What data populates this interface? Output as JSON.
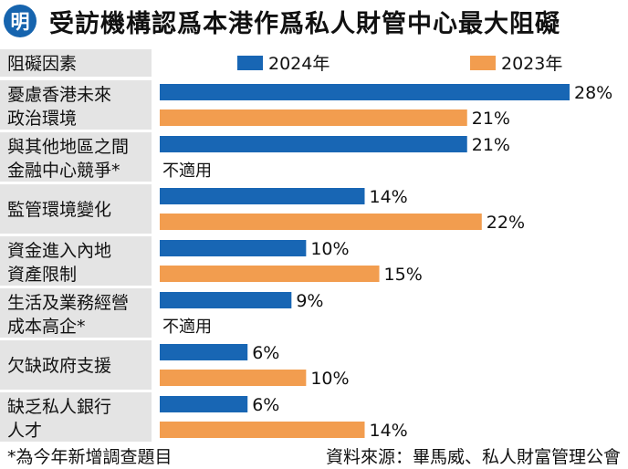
{
  "header": {
    "logo_text": "明",
    "title": "受訪機構認爲本港作爲私人財管中心最大阻礙"
  },
  "colors": {
    "series_2024": "#1866b4",
    "series_2023": "#f29d4f",
    "label_bg": "#e4e4e4",
    "header_bg": "#e4e4e4"
  },
  "chart_data": {
    "type": "bar",
    "orientation": "horizontal",
    "column_header": "阻礙因素",
    "categories": [
      [
        "憂慮香港未來",
        "政治環境"
      ],
      [
        "與其他地區之間",
        "金融中心競爭*"
      ],
      [
        "監管環境變化"
      ],
      [
        "資金進入內地",
        "資產限制"
      ],
      [
        "生活及業務經營",
        "成本高企*"
      ],
      [
        "欠缺政府支援"
      ],
      [
        "缺乏私人銀行",
        "人才"
      ]
    ],
    "series": [
      {
        "name": "2024年",
        "values": [
          28,
          21,
          14,
          10,
          9,
          6,
          6
        ],
        "labels": [
          "28%",
          "21%",
          "14%",
          "10%",
          "9%",
          "6%",
          "6%"
        ]
      },
      {
        "name": "2023年",
        "values": [
          21,
          null,
          22,
          15,
          null,
          10,
          14
        ],
        "labels": [
          "21%",
          "",
          "22%",
          "15%",
          "",
          "10%",
          "14%"
        ]
      }
    ],
    "missing_label": "不適用",
    "xlim": [
      0,
      28
    ],
    "grid": false,
    "legend": "top"
  },
  "footer": {
    "note": "*為今年新增調查題目",
    "source": "資料來源：畢馬威、私人財富管理公會"
  }
}
